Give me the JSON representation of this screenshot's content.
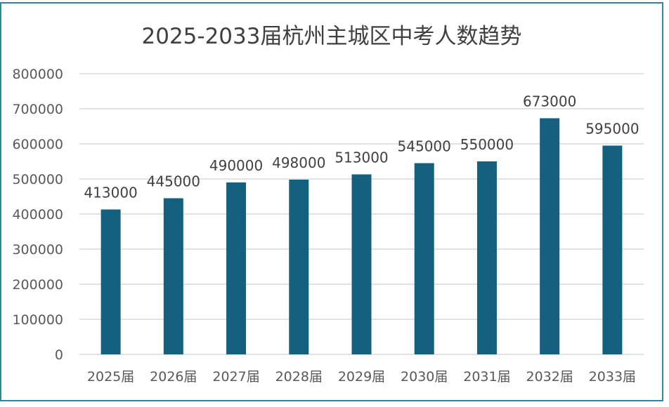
{
  "chart_data": {
    "type": "bar",
    "title": "2025-2033届杭州主城区中考人数趋势",
    "xlabel": "",
    "ylabel": "",
    "categories": [
      "2025届",
      "2026届",
      "2027届",
      "2028届",
      "2029届",
      "2030届",
      "2031届",
      "2032届",
      "2033届"
    ],
    "values": [
      413000,
      445000,
      490000,
      498000,
      513000,
      545000,
      550000,
      673000,
      595000
    ],
    "data_labels": [
      "413000",
      "445000",
      "490000",
      "498000",
      "513000",
      "545000",
      "550000",
      "673000",
      "595000"
    ],
    "ylim": [
      0,
      800000
    ],
    "yticks": [
      0,
      100000,
      200000,
      300000,
      400000,
      500000,
      600000,
      700000,
      800000
    ],
    "ytick_labels": [
      "0",
      "100000",
      "200000",
      "300000",
      "400000",
      "500000",
      "600000",
      "700000",
      "800000"
    ],
    "grid": true,
    "legend": "none",
    "colors": {
      "bar": "#155F7F",
      "grid": "#D9D9D9",
      "border": "#2E86A4",
      "text": "#404040",
      "tick_text": "#595959"
    }
  }
}
